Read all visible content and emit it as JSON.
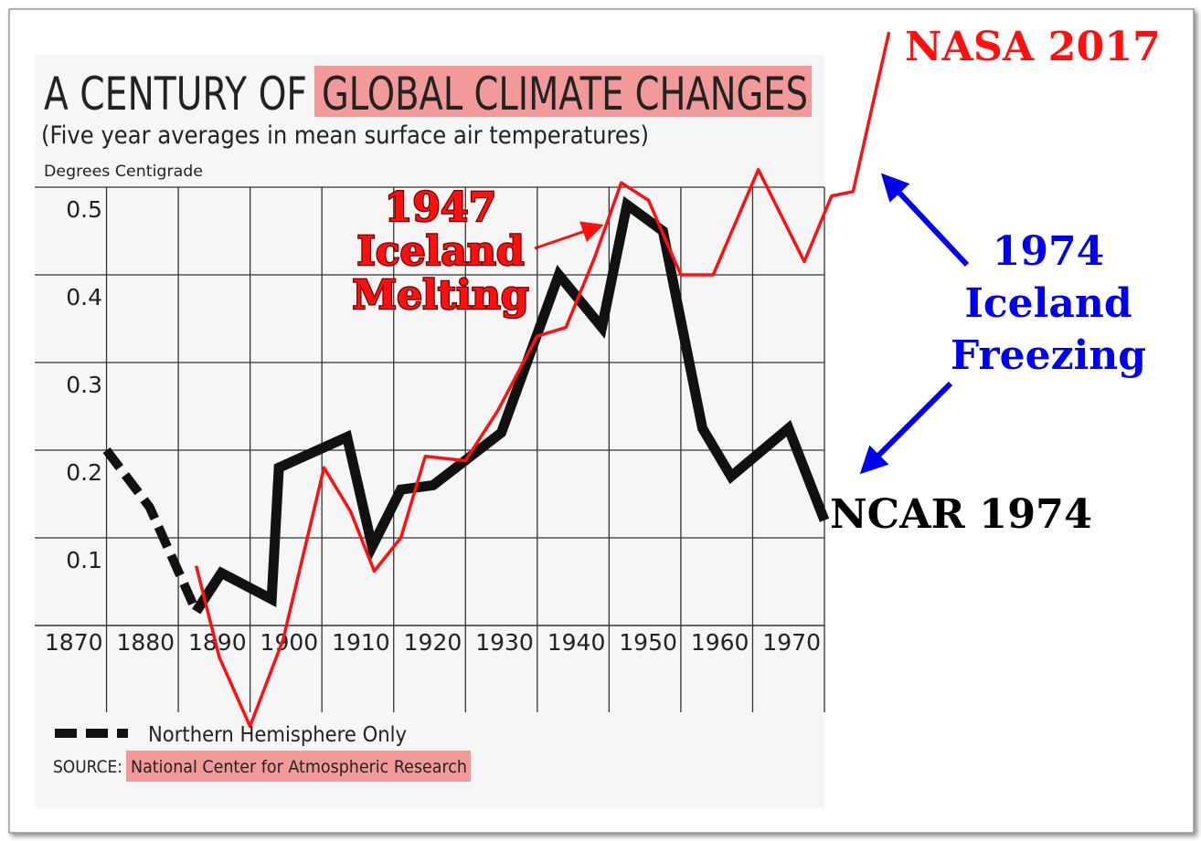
{
  "chart_data": {
    "type": "line",
    "title": "A CENTURY OF",
    "title_highlight": "GLOBAL CLIMATE CHANGES",
    "subtitle": "(Five year averages in mean surface air temperatures)",
    "y_label": "Degrees Centigrade",
    "source_label": "SOURCE:",
    "source": "National Center for Atmospheric Research",
    "xlim": [
      1860,
      1970
    ],
    "xticks": [
      1870,
      1880,
      1890,
      1900,
      1910,
      1920,
      1930,
      1940,
      1950,
      1960,
      1970
    ],
    "ylim": [
      0,
      0.5
    ],
    "yticks": [
      0.1,
      0.2,
      0.3,
      0.4,
      0.5
    ],
    "grid": true,
    "series": [
      {
        "name": "Northern Hemisphere Only",
        "color": "#111111",
        "style": "dashed",
        "x": [
          1870,
          1876,
          1882.5
        ],
        "values": [
          0.2,
          0.135,
          0.016
        ]
      },
      {
        "name": "NCAR 1974",
        "color": "#111111",
        "style": "solid",
        "x": [
          1882.5,
          1886,
          1893,
          1894,
          1903.5,
          1907,
          1911,
          1915.5,
          1925,
          1933,
          1939,
          1942.5,
          1947.5,
          1953,
          1957,
          1965,
          1970
        ],
        "values": [
          0.016,
          0.06,
          0.03,
          0.18,
          0.215,
          0.09,
          0.155,
          0.16,
          0.22,
          0.4,
          0.34,
          0.48,
          0.45,
          0.225,
          0.17,
          0.225,
          0.12
        ]
      },
      {
        "name": "NASA 2017",
        "color": "#ff1010",
        "style": "thin",
        "x": [
          1882.5,
          1885.7,
          1890,
          1894.6,
          1900.3,
          1904,
          1907.3,
          1911,
          1914.4,
          1920,
          1924.5,
          1930,
          1934,
          1938,
          1941.7,
          1945.5,
          1950,
          1954.5,
          1960.8,
          1967.2,
          1971,
          1974,
          1979
        ],
        "values": [
          0.068,
          -0.036,
          -0.115,
          -0.016,
          0.18,
          0.13,
          0.062,
          0.1,
          0.193,
          0.188,
          0.245,
          0.33,
          0.34,
          0.42,
          0.505,
          0.485,
          0.4,
          0.4,
          0.52,
          0.415,
          0.49,
          0.495,
          0.677
        ]
      }
    ],
    "annotations": {
      "melting": [
        "1947",
        "Iceland",
        "Melting"
      ],
      "freezing": [
        "1974",
        "Iceland",
        "Freezing"
      ]
    }
  }
}
